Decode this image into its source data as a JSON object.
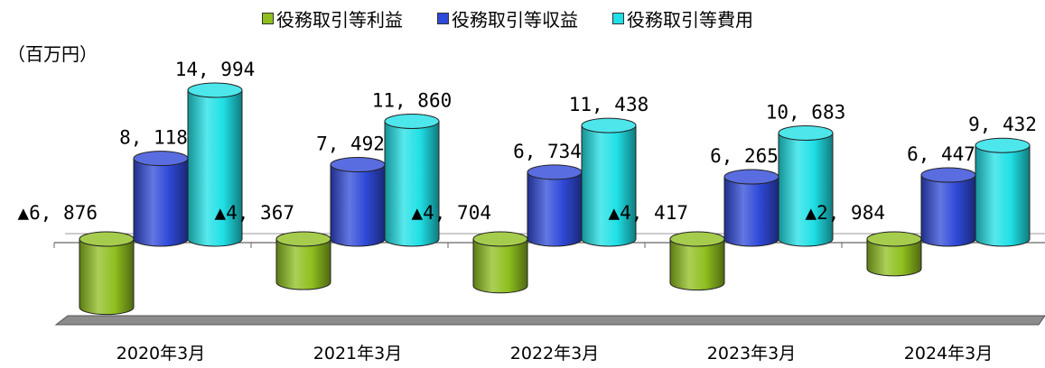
{
  "chart_data": {
    "type": "bar",
    "unit_label": "（百万円）",
    "categories": [
      "2020年3月",
      "2021年3月",
      "2022年3月",
      "2023年3月",
      "2024年3月"
    ],
    "series": [
      {
        "name": "役務取引等利益",
        "values": [
          -6876,
          -4367,
          -4704,
          -4417,
          -2984
        ],
        "labels": [
          "▲6, 876",
          "▲4, 367",
          "▲4, 704",
          "▲4, 417",
          "▲2, 984"
        ],
        "color": "#8fbf1f"
      },
      {
        "name": "役務取引等収益",
        "values": [
          8118,
          7492,
          6734,
          6265,
          6447
        ],
        "labels": [
          "8, 118",
          "7, 492",
          "6, 734",
          "6, 265",
          "6, 447"
        ],
        "color": "#2f49d8"
      },
      {
        "name": "役務取引等費用",
        "values": [
          14994,
          11860,
          11438,
          10683,
          9432
        ],
        "labels": [
          "14, 994",
          "11, 860",
          "11, 438",
          "10, 683",
          "9, 432"
        ],
        "color": "#1fe0e6"
      }
    ],
    "grid": false,
    "legend_position": "top"
  }
}
